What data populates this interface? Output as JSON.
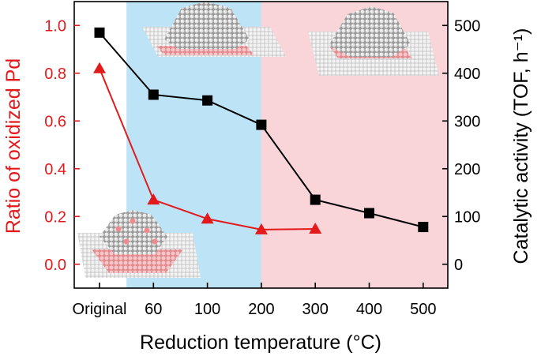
{
  "chart_data": {
    "type": "line",
    "title": "",
    "xlabel": "Reduction temperature (°C)",
    "categories": [
      "Original",
      "60",
      "100",
      "200",
      "300",
      "400",
      "500"
    ],
    "y_left": {
      "label": "Ratio of oxidized Pd",
      "color": "#e31a1c",
      "ylim": [
        -0.1,
        1.1
      ],
      "ticks": [
        "0.0",
        "0.2",
        "0.4",
        "0.6",
        "0.8",
        "1.0"
      ]
    },
    "y_right": {
      "label": "Catalytic activity (TOF, h⁻¹)",
      "color": "#000000",
      "ylim": [
        -50,
        550
      ],
      "ticks": [
        "0",
        "100",
        "200",
        "300",
        "400",
        "500"
      ]
    },
    "series": [
      {
        "name": "Ratio of oxidized Pd",
        "axis": "left",
        "marker": "triangle",
        "color": "#e31a1c",
        "values": [
          0.82,
          0.27,
          0.19,
          0.145,
          0.148,
          null,
          null
        ]
      },
      {
        "name": "Catalytic activity",
        "axis": "right",
        "marker": "square",
        "color": "#000000",
        "values": [
          485,
          355,
          343,
          292,
          135,
          107,
          78
        ]
      }
    ],
    "background_regions": [
      {
        "name": "blue-region",
        "from_category": "Original",
        "to_category": "200",
        "color": "#bde3f7"
      },
      {
        "name": "pink-region",
        "from_category": "200",
        "to_category": "500",
        "color": "#f9d4d8"
      }
    ],
    "grid": false
  }
}
